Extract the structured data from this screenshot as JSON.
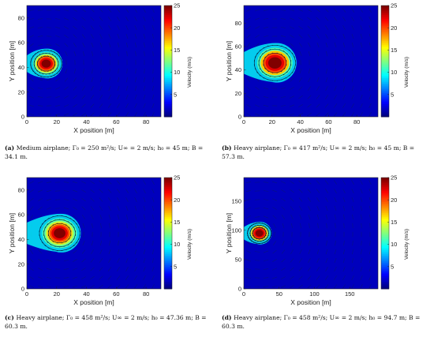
{
  "colorbar": {
    "label": "Velocity (m/s)",
    "ticks": [
      5,
      10,
      15,
      20,
      25
    ],
    "range": [
      0,
      25
    ]
  },
  "chart_data": [
    {
      "type": "heatmap",
      "id": "a",
      "xlabel": "X position [m]",
      "ylabel": "Y position [m]",
      "xlim": [
        0,
        90
      ],
      "ylim": [
        0,
        90
      ],
      "xticks": [
        0,
        20,
        40,
        60,
        80
      ],
      "yticks": [
        0,
        20,
        40,
        60,
        80
      ],
      "vortex": {
        "x": 13,
        "y": 43,
        "core_radius": 4,
        "influence_radius": 10,
        "peak_velocity": 25
      },
      "caption": {
        "label": "(a)",
        "text": "Medium airplane; Γ₀ = 250 m²/s; U∞ = 2 m/s; h₀ = 45 m; B = 34.1 m."
      }
    },
    {
      "type": "heatmap",
      "id": "b",
      "xlabel": "X position [m]",
      "ylabel": "Y position [m]",
      "xlim": [
        0,
        95
      ],
      "ylim": [
        0,
        95
      ],
      "xticks": [
        0,
        20,
        40,
        60,
        80
      ],
      "yticks": [
        0,
        20,
        40,
        60,
        80
      ],
      "vortex": {
        "x": 22,
        "y": 46,
        "core_radius": 6,
        "influence_radius": 14,
        "peak_velocity": 25
      },
      "caption": {
        "label": "(b)",
        "text": "Heavy airplane; Γ₀ = 417 m²/s; U∞ = 2 m/s; h₀ = 45 m; B = 57.3 m."
      }
    },
    {
      "type": "heatmap",
      "id": "c",
      "xlabel": "X position [m]",
      "ylabel": "Y position [m]",
      "xlim": [
        0,
        90
      ],
      "ylim": [
        0,
        90
      ],
      "xticks": [
        0,
        20,
        40,
        60,
        80
      ],
      "yticks": [
        0,
        20,
        40,
        60,
        80
      ],
      "vortex": {
        "x": 22,
        "y": 45,
        "core_radius": 5,
        "influence_radius": 13,
        "peak_velocity": 25
      },
      "caption": {
        "label": "(c)",
        "text": "Heavy airplane; Γ₀ = 458 m²/s; U∞ = 2 m/s; h₀ = 47.36 m; B = 60.3 m."
      }
    },
    {
      "type": "heatmap",
      "id": "d",
      "xlabel": "X position [m]",
      "ylabel": "Y position [m]",
      "xlim": [
        0,
        190
      ],
      "ylim": [
        0,
        190
      ],
      "xticks": [
        0,
        50,
        100,
        150
      ],
      "yticks": [
        0,
        50,
        100,
        150
      ],
      "vortex": {
        "x": 22,
        "y": 95,
        "core_radius": 7,
        "influence_radius": 16,
        "peak_velocity": 25
      },
      "caption": {
        "label": "(d)",
        "text": "Heavy airplane; Γ₀ = 458 m²/s; U∞ = 2 m/s; h₀ = 94.7 m; B = 60.3 m."
      }
    }
  ]
}
